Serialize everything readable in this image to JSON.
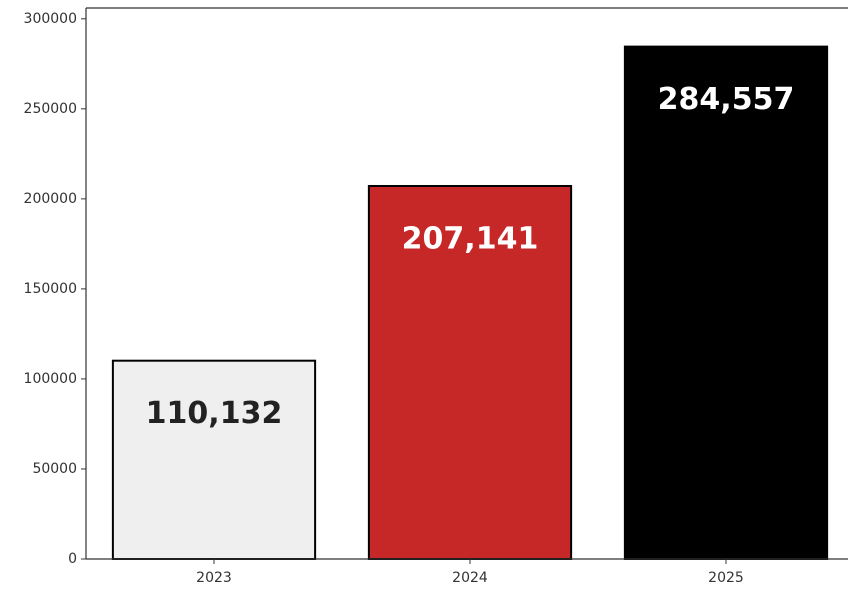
{
  "chart_data": {
    "type": "bar",
    "categories": [
      "2023",
      "2024",
      "2025"
    ],
    "values": [
      110132,
      207141,
      284557
    ],
    "value_labels": [
      "110,132",
      "207,141",
      "284,557"
    ],
    "colors": [
      "#efefef",
      "#c62828",
      "#000000"
    ],
    "ylim": [
      0,
      306000
    ],
    "yticks": [
      0,
      50000,
      100000,
      150000,
      200000,
      250000,
      300000
    ],
    "grid": false
  }
}
